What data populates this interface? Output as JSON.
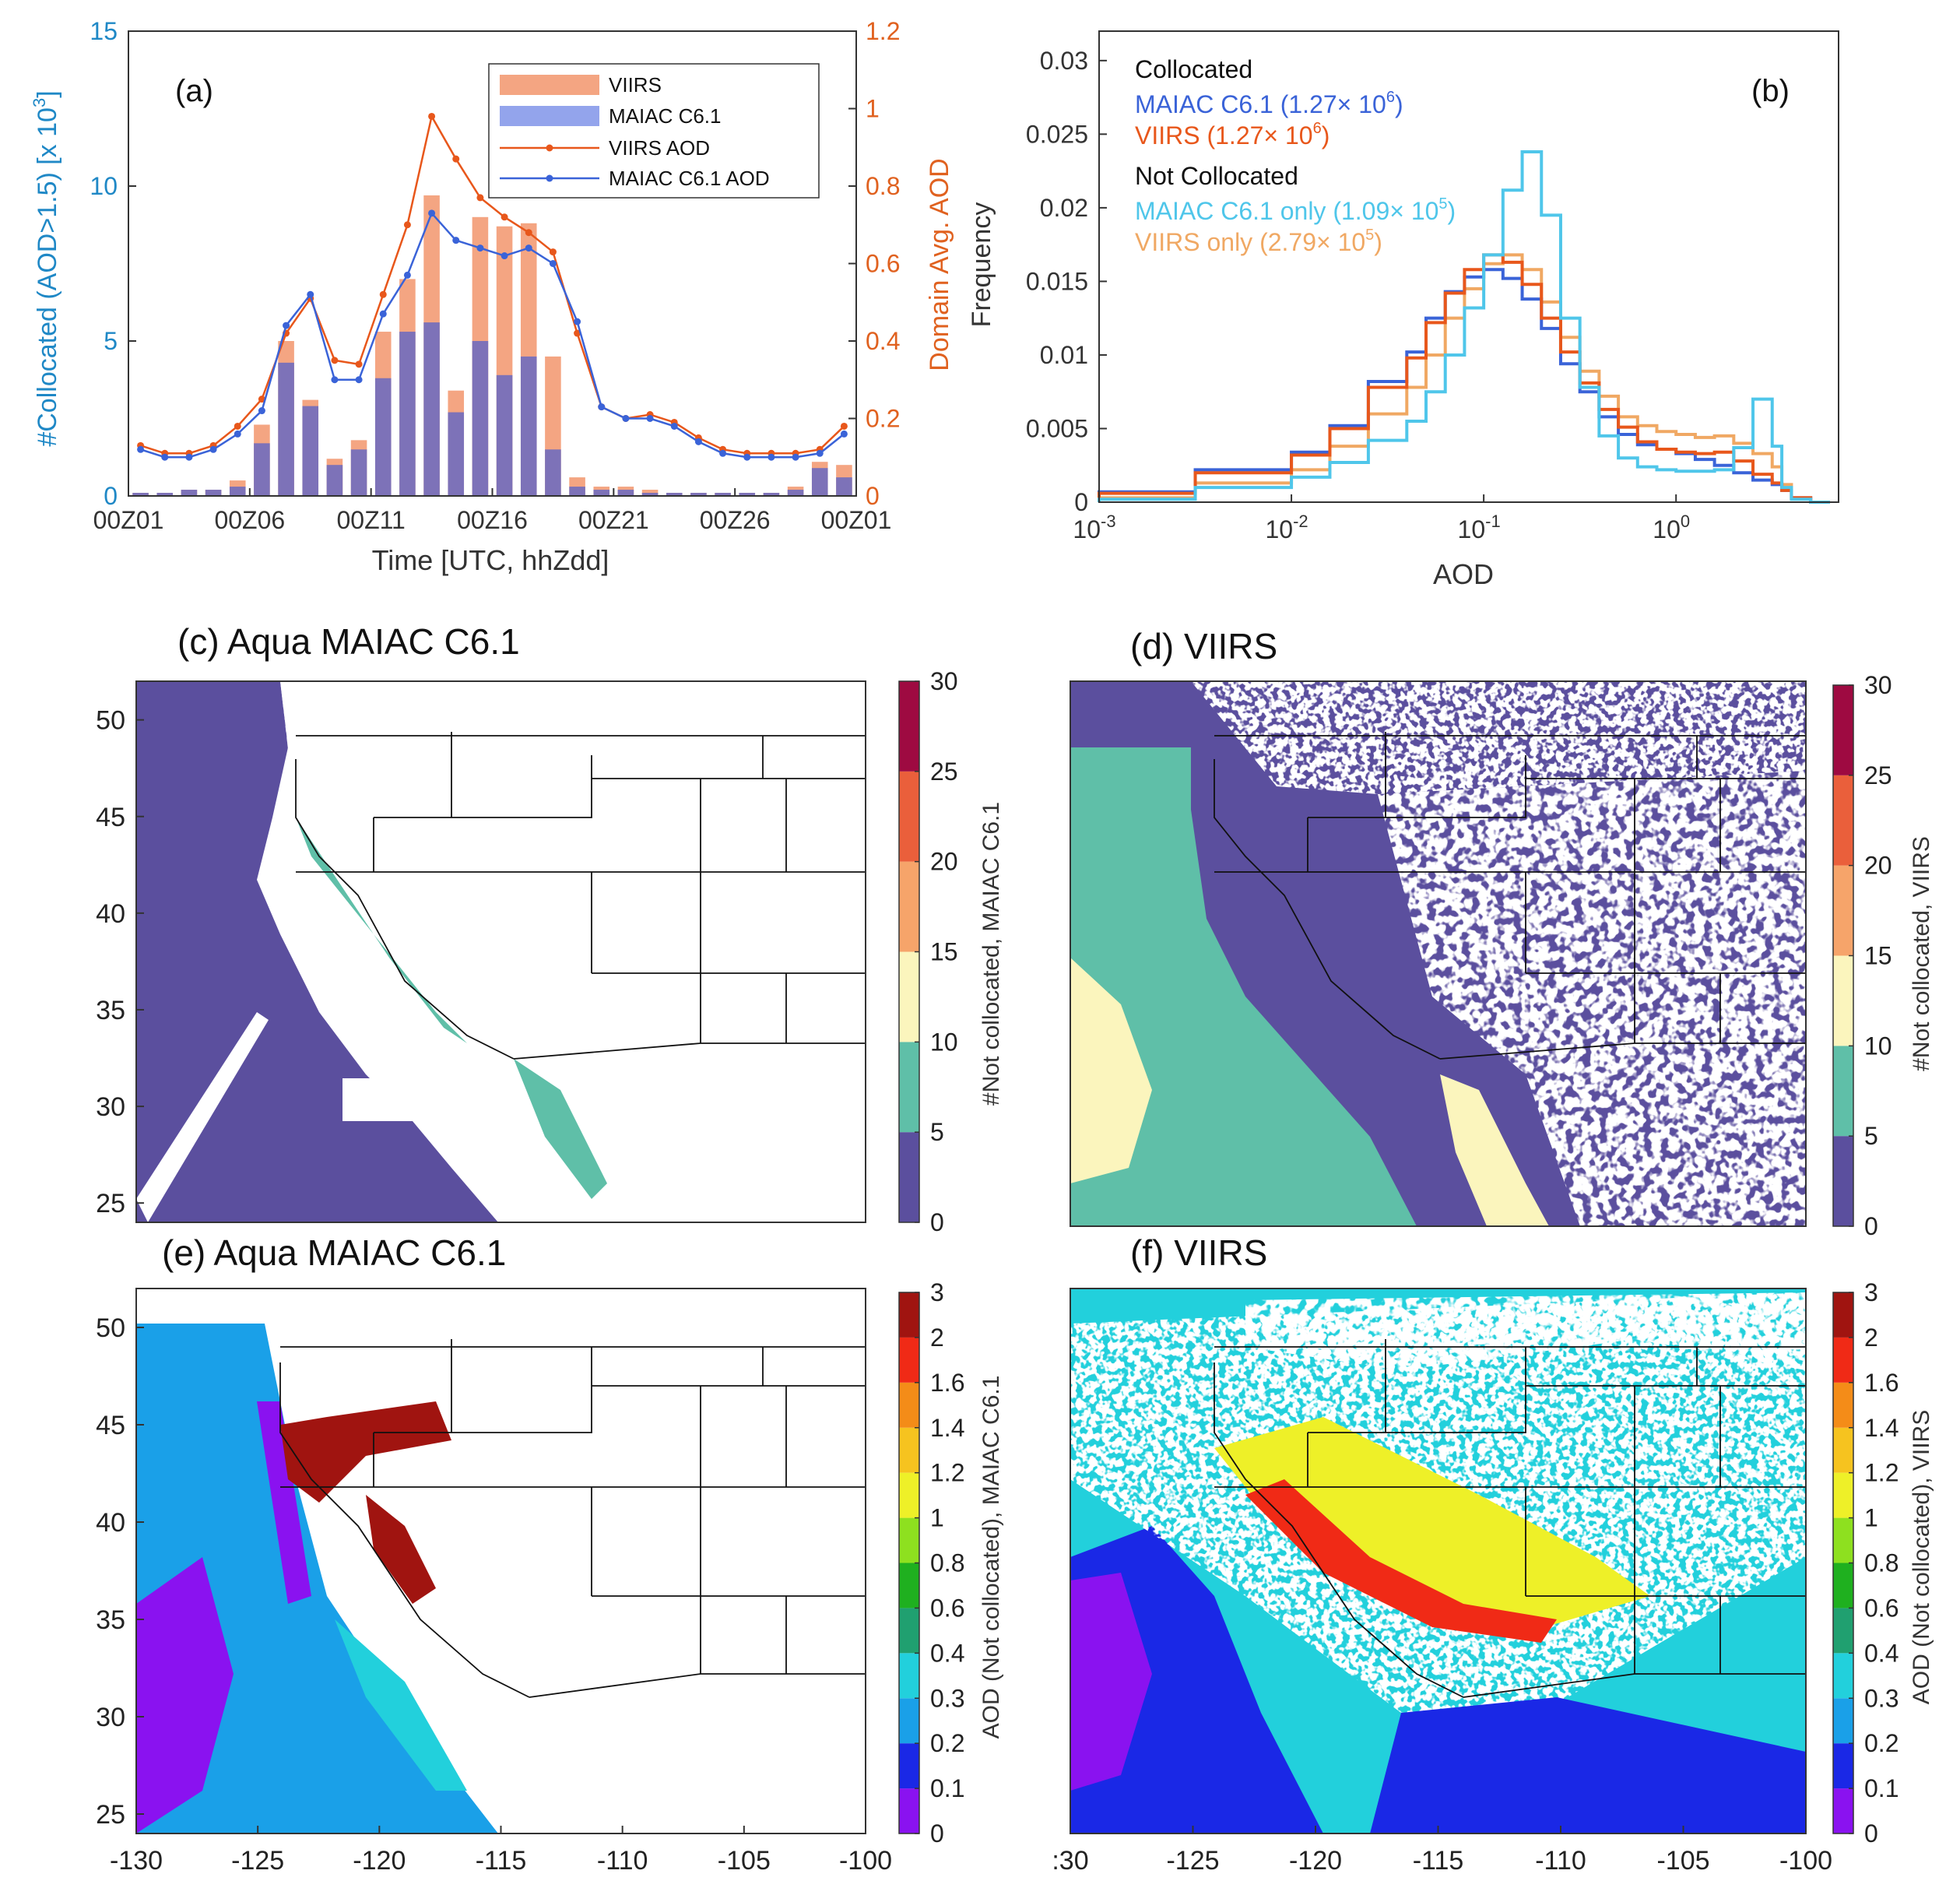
{
  "figure": {
    "colors": {
      "viirs_bar": "#f4a582",
      "maiac_bar": "#8c8cd6",
      "overlap_bar": "#7d72b8",
      "viirs_line": "#e8571b",
      "maiac_line": "#3a63d8",
      "left_axis": "#1f88c6",
      "right_axis": "#e0611f",
      "maiac_only": "#4fc6ea",
      "viirs_only": "#f0a863"
    }
  },
  "chart_data": [
    {
      "id": "a",
      "panel_label": "(a)",
      "type": "bar",
      "ylabel": "#Collocated (AOD>1.5) [x 10",
      "ylabel_exp": "3",
      "ylabel_close": "]",
      "y2label": "Domain Avg. AOD",
      "xlabel": "Time [UTC, hhZdd]",
      "ylim": [
        0,
        15
      ],
      "y2lim": [
        0,
        1.2
      ],
      "yticks": [
        "0",
        "5",
        "10",
        "15"
      ],
      "y2ticks": [
        "0",
        "0.2",
        "0.4",
        "0.6",
        "0.8",
        "1",
        "1.2"
      ],
      "xticks": [
        "00Z01",
        "00Z06",
        "00Z11",
        "00Z16",
        "00Z21",
        "00Z26",
        "00Z01"
      ],
      "legend": [
        "VIIRS",
        "MAIAC C6.1",
        "VIIRS AOD",
        "MAIAC C6.1 AOD"
      ],
      "series": [
        {
          "name": "VIIRS",
          "values": [
            0.1,
            0.1,
            0.2,
            0.2,
            0.5,
            2.3,
            5.0,
            3.1,
            1.2,
            1.8,
            5.3,
            7.0,
            9.7,
            3.4,
            9.0,
            8.7,
            8.8,
            4.5,
            0.6,
            0.3,
            0.3,
            0.2,
            0.1,
            0.1,
            0.1,
            0.1,
            0.1,
            0.3,
            1.1,
            1.0
          ]
        },
        {
          "name": "MAIAC C6.1",
          "values": [
            0.1,
            0.1,
            0.2,
            0.2,
            0.3,
            1.7,
            4.3,
            2.9,
            1.0,
            1.5,
            3.8,
            5.3,
            5.6,
            2.7,
            5.0,
            3.9,
            4.5,
            1.5,
            0.3,
            0.2,
            0.2,
            0.1,
            0.1,
            0.1,
            0.1,
            0.1,
            0.1,
            0.2,
            0.9,
            0.6
          ]
        },
        {
          "name": "VIIRS AOD",
          "values": [
            0.13,
            0.11,
            0.11,
            0.13,
            0.18,
            0.25,
            0.42,
            0.51,
            0.35,
            0.34,
            0.52,
            0.7,
            0.98,
            0.87,
            0.77,
            0.72,
            0.68,
            0.63,
            0.42,
            0.23,
            0.2,
            0.21,
            0.19,
            0.15,
            0.12,
            0.11,
            0.11,
            0.11,
            0.12,
            0.18
          ]
        },
        {
          "name": "MAIAC C6.1 AOD",
          "values": [
            0.12,
            0.1,
            0.1,
            0.12,
            0.16,
            0.22,
            0.44,
            0.52,
            0.3,
            0.3,
            0.47,
            0.57,
            0.73,
            0.66,
            0.64,
            0.62,
            0.64,
            0.6,
            0.45,
            0.23,
            0.2,
            0.2,
            0.18,
            0.14,
            0.11,
            0.1,
            0.1,
            0.1,
            0.11,
            0.16
          ]
        }
      ]
    },
    {
      "id": "b",
      "panel_label": "(b)",
      "type": "line",
      "xlabel": "AOD",
      "ylabel": "Frequency",
      "xscale": "log",
      "xlim": [
        0.001,
        7
      ],
      "ylim": [
        0,
        0.032
      ],
      "xticks": [
        {
          "base": "10",
          "exp": "-3"
        },
        {
          "base": "10",
          "exp": "-2"
        },
        {
          "base": "10",
          "exp": "-1"
        },
        {
          "base": "10",
          "exp": "0"
        }
      ],
      "yticks": [
        "0",
        "0.005",
        "0.01",
        "0.015",
        "0.02",
        "0.025",
        "0.03"
      ],
      "legend_headers": [
        "Collocated",
        "Not Collocated"
      ],
      "legend": [
        {
          "name": "MAIAC C6.1 (1.27",
          "sym": "×",
          "base": " 10",
          "exp": "6",
          "close": ")"
        },
        {
          "name": "VIIRS (1.27",
          "sym": "×",
          "base": " 10",
          "exp": "6",
          "close": ")"
        },
        {
          "name": "MAIAC C6.1 only (1.09",
          "sym": "×",
          "base": " 10",
          "exp": "5",
          "close": ")"
        },
        {
          "name": "VIIRS only (2.79",
          "sym": "×",
          "base": " 10",
          "exp": "5",
          "close": ")"
        }
      ],
      "log10_x": [
        -3.0,
        -2.5,
        -2.0,
        -1.8,
        -1.6,
        -1.4,
        -1.3,
        -1.2,
        -1.1,
        -1.0,
        -0.9,
        -0.8,
        -0.7,
        -0.6,
        -0.5,
        -0.4,
        -0.3,
        -0.2,
        -0.1,
        0.0,
        0.1,
        0.2,
        0.3,
        0.4,
        0.5,
        0.55,
        0.6,
        0.7,
        0.8
      ],
      "series": [
        {
          "name": "MAIAC C6.1 collocated",
          "values": [
            0.0,
            0.0007,
            0.0022,
            0.0034,
            0.0052,
            0.0082,
            0.0102,
            0.0125,
            0.0143,
            0.0153,
            0.0158,
            0.0152,
            0.0138,
            0.0118,
            0.0094,
            0.0075,
            0.0058,
            0.0046,
            0.0039,
            0.0036,
            0.0033,
            0.0029,
            0.0025,
            0.002,
            0.0015,
            0.0012,
            0.0008,
            0.0003,
            0.0
          ]
        },
        {
          "name": "VIIRS collocated",
          "values": [
            0.0,
            0.0006,
            0.002,
            0.0032,
            0.005,
            0.0078,
            0.0098,
            0.0122,
            0.0142,
            0.0158,
            0.0168,
            0.0163,
            0.0148,
            0.0125,
            0.0102,
            0.0081,
            0.0063,
            0.0051,
            0.0041,
            0.0036,
            0.0034,
            0.0033,
            0.0034,
            0.0028,
            0.0019,
            0.0013,
            0.0008,
            0.0003,
            0.0
          ]
        },
        {
          "name": "MAIAC C6.1 only",
          "values": [
            0.0,
            0.0002,
            0.001,
            0.0017,
            0.0027,
            0.0042,
            0.0055,
            0.0075,
            0.01,
            0.0132,
            0.0168,
            0.0212,
            0.0238,
            0.0195,
            0.0125,
            0.0078,
            0.0045,
            0.003,
            0.0024,
            0.0022,
            0.0021,
            0.0021,
            0.0022,
            0.0037,
            0.007,
            0.0038,
            0.001,
            0.0002,
            0.0
          ]
        },
        {
          "name": "VIIRS only",
          "values": [
            0.0,
            0.0003,
            0.0013,
            0.0022,
            0.0038,
            0.006,
            0.0078,
            0.01,
            0.0125,
            0.0145,
            0.0162,
            0.0168,
            0.0158,
            0.0136,
            0.0112,
            0.0089,
            0.0072,
            0.0058,
            0.0052,
            0.0048,
            0.0046,
            0.0044,
            0.0045,
            0.004,
            0.0033,
            0.0024,
            0.0012,
            0.0003,
            0.0
          ]
        }
      ]
    },
    {
      "id": "c",
      "type": "heatmap",
      "title": "(c) Aqua MAIAC C6.1",
      "colorbar_label": "#Not collocated, MAIAC C6.1",
      "colorbar_ticks": [
        "0",
        "5",
        "10",
        "15",
        "20",
        "25",
        "30"
      ],
      "colorbar_colors": [
        "#5b4f9e",
        "#5fbfa8",
        "#fbf5bd",
        "#f6a46a",
        "#ea5f3b",
        "#9e0a41"
      ],
      "xlim": [
        -130,
        -100
      ],
      "ylim": [
        24,
        52
      ],
      "yticks": [
        "25",
        "30",
        "35",
        "40",
        "45",
        "50"
      ]
    },
    {
      "id": "d",
      "type": "heatmap",
      "title": "(d) VIIRS",
      "colorbar_label": "#Not collocated, VIIRS",
      "colorbar_ticks": [
        "0",
        "5",
        "10",
        "15",
        "20",
        "25",
        "30"
      ],
      "colorbar_colors": [
        "#5b4f9e",
        "#5fbfa8",
        "#fbf5bd",
        "#f6a46a",
        "#ea5f3b",
        "#9e0a41"
      ],
      "xlim": [
        -130,
        -100
      ],
      "ylim": [
        24,
        52
      ]
    },
    {
      "id": "e",
      "type": "heatmap",
      "title": "(e) Aqua MAIAC C6.1",
      "colorbar_label": "AOD (Not collocated), MAIAC C6.1",
      "colorbar_ticks": [
        "0",
        "0.1",
        "0.2",
        "0.3",
        "0.4",
        "0.6",
        "0.8",
        "1",
        "1.2",
        "1.4",
        "1.6",
        "2",
        "3"
      ],
      "colorbar_colors": [
        "#8a12f0",
        "#1a28e6",
        "#1aa0e8",
        "#22d0dc",
        "#20a070",
        "#1fb01f",
        "#8ee01f",
        "#eef028",
        "#f6c31f",
        "#f48c18",
        "#f02a16",
        "#a01410"
      ],
      "xlim": [
        -130,
        -100
      ],
      "ylim": [
        24,
        52
      ],
      "xticks": [
        "-130",
        "-125",
        "-120",
        "-115",
        "-110",
        "-105",
        "-100"
      ],
      "yticks": [
        "25",
        "30",
        "35",
        "40",
        "45",
        "50"
      ]
    },
    {
      "id": "f",
      "type": "heatmap",
      "title": "(f) VIIRS",
      "colorbar_label": "AOD (Not collocated), VIIRS",
      "colorbar_ticks": [
        "0",
        "0.1",
        "0.2",
        "0.3",
        "0.4",
        "0.6",
        "0.8",
        "1",
        "1.2",
        "1.4",
        "1.6",
        "2",
        "3"
      ],
      "colorbar_colors": [
        "#8a12f0",
        "#1a28e6",
        "#1aa0e8",
        "#22d0dc",
        "#20a070",
        "#1fb01f",
        "#8ee01f",
        "#eef028",
        "#f6c31f",
        "#f48c18",
        "#f02a16",
        "#a01410"
      ],
      "xlim": [
        -130,
        -100
      ],
      "ylim": [
        24,
        52
      ],
      "xticks": [
        ":30",
        "-125",
        "-120",
        "-115",
        "-110",
        "-105",
        "-100"
      ]
    }
  ]
}
